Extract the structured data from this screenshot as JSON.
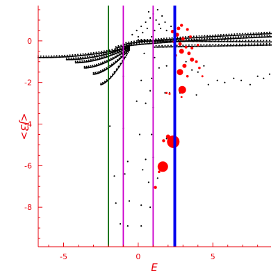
{
  "chart_data": {
    "type": "scatter",
    "xlabel": "E",
    "ylabel": "<J3>",
    "xlim": [
      -6.7,
      8.9
    ],
    "ylim": [
      -9.9,
      1.7
    ],
    "x_ticks": [
      -5,
      0,
      5
    ],
    "y_ticks": [
      0,
      -2,
      -4,
      -6,
      -8
    ],
    "x_tick_labels": [
      "-5",
      "0",
      "5"
    ],
    "y_tick_labels": [
      "0",
      "-2",
      "-4",
      "-6",
      "-8"
    ],
    "grid": false,
    "axis_color": "#e8000b",
    "vertical_lines": [
      {
        "x": -2.0,
        "color": "#006400",
        "width": 1.8
      },
      {
        "x": -1.0,
        "color": "#cc00cc",
        "width": 1.8
      },
      {
        "x": 1.0,
        "color": "#cc00cc",
        "width": 1.8
      },
      {
        "x": 2.45,
        "color": "#0000ee",
        "width": 4
      }
    ],
    "series": [
      {
        "color": "#000000",
        "marker_size": 1.1,
        "curves": [
          {
            "x_start": -6.7,
            "x_end": -0.6,
            "y_start": -0.8,
            "y_end": -0.3,
            "power": 2.2,
            "n": 70
          },
          {
            "x_start": -4.8,
            "x_end": -0.6,
            "y_start": -0.9,
            "y_end": -0.25,
            "power": 2.0,
            "n": 55
          },
          {
            "x_start": -4.2,
            "x_end": -0.6,
            "y_start": -1.05,
            "y_end": -0.3,
            "power": 1.8,
            "n": 50
          },
          {
            "x_start": -3.6,
            "x_end": -0.6,
            "y_start": -1.3,
            "y_end": -0.35,
            "power": 1.7,
            "n": 45
          },
          {
            "x_start": -3.0,
            "x_end": -0.6,
            "y_start": -1.6,
            "y_end": -0.4,
            "power": 1.6,
            "n": 40
          },
          {
            "x_start": -2.5,
            "x_end": -0.6,
            "y_start": -2.1,
            "y_end": -0.45,
            "power": 1.5,
            "n": 30
          },
          {
            "x_start": -1.5,
            "x_end": 8.9,
            "y_start": -0.35,
            "y_end": 0.2,
            "power": 0.6,
            "n": 120
          },
          {
            "x_start": -1.0,
            "x_end": 8.9,
            "y_start": -0.2,
            "y_end": 0.35,
            "power": 0.6,
            "n": 110
          },
          {
            "x_start": 0.0,
            "x_end": 8.9,
            "y_start": 0.0,
            "y_end": -0.05,
            "power": 1.0,
            "n": 90
          },
          {
            "x_start": 1.0,
            "x_end": 8.9,
            "y_start": -0.3,
            "y_end": -0.2,
            "power": 1.0,
            "n": 80
          }
        ],
        "points": [
          {
            "x": -0.4,
            "y": 0.3
          },
          {
            "x": -0.1,
            "y": 0.5
          },
          {
            "x": 0.2,
            "y": 0.7
          },
          {
            "x": 0.5,
            "y": 0.9
          },
          {
            "x": 0.8,
            "y": 1.1
          },
          {
            "x": 1.0,
            "y": 1.3
          },
          {
            "x": 1.2,
            "y": 1.0
          },
          {
            "x": 1.4,
            "y": 0.8
          },
          {
            "x": 1.6,
            "y": 1.2
          },
          {
            "x": 1.8,
            "y": 0.9
          },
          {
            "x": 0.3,
            "y": 0.4
          },
          {
            "x": 0.6,
            "y": 0.6
          },
          {
            "x": 1.1,
            "y": 0.5
          },
          {
            "x": 1.5,
            "y": 0.6
          },
          {
            "x": 0.9,
            "y": 0.2
          },
          {
            "x": 1.9,
            "y": 0.5
          },
          {
            "x": 2.2,
            "y": 0.7
          },
          {
            "x": 0.0,
            "y": 0.2
          },
          {
            "x": 0.7,
            "y": 1.4
          },
          {
            "x": 1.3,
            "y": 1.5
          },
          {
            "x": -0.5,
            "y": -0.2
          },
          {
            "x": 0.4,
            "y": -0.6
          },
          {
            "x": 1.1,
            "y": -0.8
          },
          {
            "x": 1.4,
            "y": -1.3
          },
          {
            "x": 0.9,
            "y": -1.8
          },
          {
            "x": 0.2,
            "y": -1.9
          },
          {
            "x": -1.0,
            "y": -1.7
          },
          {
            "x": -1.6,
            "y": -1.5
          },
          {
            "x": 1.9,
            "y": -1.2
          },
          {
            "x": 3.2,
            "y": -1.0
          },
          {
            "x": 3.6,
            "y": -1.4
          },
          {
            "x": 4.0,
            "y": -1.5
          },
          {
            "x": 4.7,
            "y": -2.1
          },
          {
            "x": 5.3,
            "y": -1.9
          },
          {
            "x": 5.8,
            "y": -2.0
          },
          {
            "x": 6.4,
            "y": -1.8
          },
          {
            "x": 6.9,
            "y": -1.9
          },
          {
            "x": 7.5,
            "y": -2.1
          },
          {
            "x": 8.0,
            "y": -1.7
          },
          {
            "x": 8.4,
            "y": -1.8
          },
          {
            "x": 8.8,
            "y": -1.6
          },
          {
            "x": 4.4,
            "y": -1.2
          },
          {
            "x": 3.9,
            "y": -2.6
          },
          {
            "x": 2.8,
            "y": -2.5
          },
          {
            "x": 2.1,
            "y": -2.5
          },
          {
            "x": 1.8,
            "y": -2.5
          },
          {
            "x": -0.1,
            "y": -2.9
          },
          {
            "x": 0.5,
            "y": -3.0
          },
          {
            "x": 1.0,
            "y": -3.2
          },
          {
            "x": 0.8,
            "y": -2.4
          },
          {
            "x": -1.9,
            "y": -4.1
          },
          {
            "x": -1.0,
            "y": -4.2
          },
          {
            "x": 0.1,
            "y": -4.5
          },
          {
            "x": 0.9,
            "y": -4.5
          },
          {
            "x": 1.9,
            "y": -4.7
          },
          {
            "x": 1.0,
            "y": -5.6
          },
          {
            "x": 0.5,
            "y": -5.7
          },
          {
            "x": -0.7,
            "y": -5.8
          },
          {
            "x": -1.6,
            "y": -6.5
          },
          {
            "x": -0.9,
            "y": -6.4
          },
          {
            "x": 0.3,
            "y": -6.2
          },
          {
            "x": 0.7,
            "y": -6.8
          },
          {
            "x": 1.3,
            "y": -6.6
          },
          {
            "x": -1.5,
            "y": -7.8
          },
          {
            "x": -0.6,
            "y": -7.7
          },
          {
            "x": 0.2,
            "y": -7.9
          },
          {
            "x": 0.8,
            "y": -8.0
          },
          {
            "x": -1.2,
            "y": -8.8
          },
          {
            "x": -0.7,
            "y": -8.9
          },
          {
            "x": 0.2,
            "y": -8.9
          }
        ]
      },
      {
        "color": "#ff0000",
        "points": [
          {
            "x": 2.3,
            "y": 0.45,
            "s": 2.5
          },
          {
            "x": 2.7,
            "y": 0.6,
            "s": 2.5
          },
          {
            "x": 2.9,
            "y": 0.75,
            "s": 2.2
          },
          {
            "x": 3.3,
            "y": 0.55,
            "s": 2.0
          },
          {
            "x": 2.6,
            "y": 0.3,
            "s": 3.0
          },
          {
            "x": 3.0,
            "y": 0.1,
            "s": 2.5
          },
          {
            "x": 3.5,
            "y": 0.2,
            "s": 2.0
          },
          {
            "x": 2.4,
            "y": -0.05,
            "s": 2.0
          },
          {
            "x": 2.8,
            "y": -0.15,
            "s": 2.5
          },
          {
            "x": 3.2,
            "y": -0.3,
            "s": 2.0
          },
          {
            "x": 3.6,
            "y": -0.35,
            "s": 2.0
          },
          {
            "x": 4.0,
            "y": -0.2,
            "s": 1.8
          },
          {
            "x": 2.9,
            "y": -0.5,
            "s": 3.5
          },
          {
            "x": 3.4,
            "y": -0.6,
            "s": 2.5
          },
          {
            "x": 2.5,
            "y": -0.7,
            "s": 2.0
          },
          {
            "x": 3.6,
            "y": -0.9,
            "s": 3.0
          },
          {
            "x": 3.9,
            "y": -1.0,
            "s": 2.0
          },
          {
            "x": 3.1,
            "y": -1.2,
            "s": 3.0
          },
          {
            "x": 2.8,
            "y": -1.5,
            "s": 4.5
          },
          {
            "x": 4.1,
            "y": -1.3,
            "s": 1.8
          },
          {
            "x": 3.3,
            "y": -1.7,
            "s": 1.8
          },
          {
            "x": 4.3,
            "y": -1.7,
            "s": 1.5
          },
          {
            "x": 2.95,
            "y": -2.35,
            "s": 5.5
          },
          {
            "x": 2.1,
            "y": -2.55,
            "s": 1.5
          },
          {
            "x": 1.9,
            "y": -2.5,
            "s": 1.5
          },
          {
            "x": 2.9,
            "y": -2.7,
            "s": 1.5
          },
          {
            "x": 1.7,
            "y": -4.8,
            "s": 2.2
          },
          {
            "x": 2.0,
            "y": -4.6,
            "s": 3.0
          },
          {
            "x": 2.3,
            "y": -4.65,
            "s": 2.5
          },
          {
            "x": 2.35,
            "y": -4.85,
            "s": 9.0
          },
          {
            "x": 1.65,
            "y": -6.05,
            "s": 7.5
          },
          {
            "x": 1.4,
            "y": -6.3,
            "s": 1.8
          },
          {
            "x": 1.15,
            "y": -7.05,
            "s": 2.2
          }
        ]
      }
    ]
  }
}
